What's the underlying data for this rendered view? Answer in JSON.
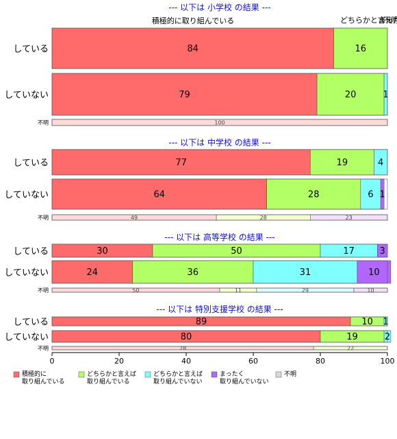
{
  "chart_data": {
    "type": "bar",
    "orientation": "horizontal",
    "stacked": true,
    "xlim": [
      0,
      100
    ],
    "x_ticks": [
      "0",
      "20",
      "40",
      "60",
      "80",
      "100"
    ],
    "top_annotations": [
      "積極的に取り組んでいる",
      "どちらかと言え",
      "まった",
      "不明"
    ],
    "legend": {
      "placement": "bottom",
      "entries": [
        {
          "line1": "積極的に",
          "line2": "取り組んでいる",
          "color": "#ff6b6b"
        },
        {
          "line1": "どちらかと言えば",
          "line2": "取り組んでいる",
          "color": "#b3ff66"
        },
        {
          "line1": "どちらかと言えば",
          "line2": "取り組んでいない",
          "color": "#80ffff"
        },
        {
          "line1": "まったく",
          "line2": "取り組んでいない",
          "color": "#b266ff"
        },
        {
          "line1": "不明",
          "line2": "",
          "color": "#d9d9d9"
        }
      ]
    },
    "panels": [
      {
        "title": "--- 以下は 小学校 の結果 ---",
        "rows": [
          {
            "label": "している",
            "values": [
              84,
              16,
              0,
              0
            ],
            "labels": [
              "84",
              "16",
              "",
              ""
            ]
          },
          {
            "label": "していない",
            "values": [
              79,
              20,
              1,
              0
            ],
            "labels": [
              "79",
              "20",
              "1",
              ""
            ]
          }
        ],
        "unknown": {
          "label": "不明",
          "values": [
            100,
            0,
            0,
            0
          ],
          "labels": [
            "100",
            "",
            "",
            ""
          ]
        }
      },
      {
        "title": "--- 以下は 中学校 の結果 ---",
        "rows": [
          {
            "label": "している",
            "values": [
              77,
              19,
              4,
              0
            ],
            "labels": [
              "77",
              "19",
              "4",
              ""
            ]
          },
          {
            "label": "していない",
            "values": [
              64,
              28,
              6,
              1
            ],
            "labels": [
              "64",
              "28",
              "6",
              "1"
            ]
          }
        ],
        "unknown": {
          "label": "不明",
          "values": [
            49,
            28,
            0,
            23
          ],
          "labels": [
            "49",
            "28",
            "",
            "23"
          ]
        }
      },
      {
        "title": "--- 以下は 高等学校 の結果 ---",
        "rows": [
          {
            "label": "している",
            "values": [
              30,
              50,
              17,
              3
            ],
            "labels": [
              "30",
              "50",
              "17",
              "3"
            ]
          },
          {
            "label": "していない",
            "values": [
              24,
              36,
              31,
              10
            ],
            "labels": [
              "24",
              "36",
              "31",
              "10"
            ]
          }
        ],
        "unknown": {
          "label": "不明",
          "values": [
            50,
            11,
            29,
            10
          ],
          "labels": [
            "50",
            "11",
            "29",
            "10"
          ]
        }
      },
      {
        "title": "--- 以下は 特別支援学校 の結果 ---",
        "rows": [
          {
            "label": "している",
            "values": [
              89,
              10,
              1,
              0
            ],
            "labels": [
              "89",
              "10",
              "1",
              ""
            ]
          },
          {
            "label": "していない",
            "values": [
              80,
              19,
              2,
              0
            ],
            "labels": [
              "80",
              "19",
              "2",
              ""
            ]
          }
        ],
        "unknown": {
          "label": "不明",
          "values": [
            78,
            22,
            0,
            0
          ],
          "labels": [
            "78",
            "22",
            "",
            ""
          ]
        }
      }
    ]
  }
}
